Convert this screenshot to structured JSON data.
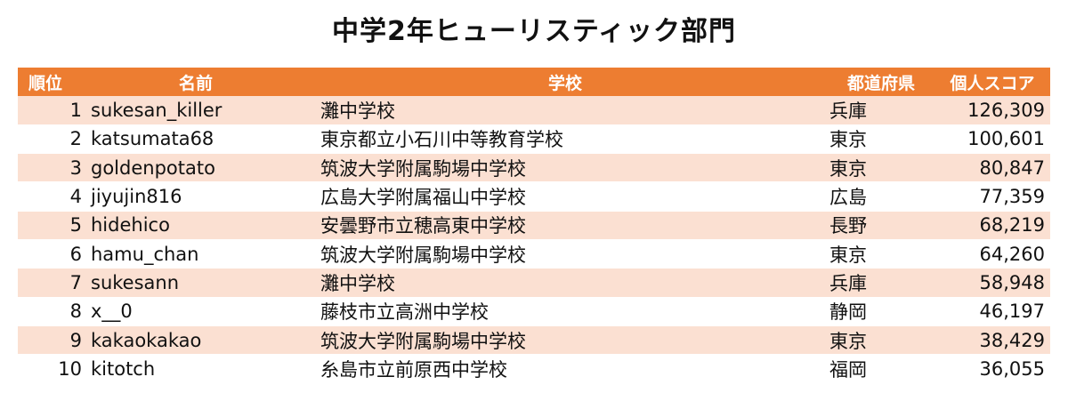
{
  "title": "中学2年ヒューリスティック部門",
  "headers": {
    "rank": "順位",
    "name": "名前",
    "school": "学校",
    "prefecture": "都道府県",
    "score": "個人スコア"
  },
  "rows": [
    {
      "rank": "1",
      "name": "sukesan_killer",
      "school": "灘中学校",
      "prefecture": "兵庫",
      "score": "126,309"
    },
    {
      "rank": "2",
      "name": "katsumata68",
      "school": "東京都立小石川中等教育学校",
      "prefecture": "東京",
      "score": "100,601"
    },
    {
      "rank": "3",
      "name": "goldenpotato",
      "school": "筑波大学附属駒場中学校",
      "prefecture": "東京",
      "score": "80,847"
    },
    {
      "rank": "4",
      "name": "jiyujin816",
      "school": "広島大学附属福山中学校",
      "prefecture": "広島",
      "score": "77,359"
    },
    {
      "rank": "5",
      "name": "hidehico",
      "school": "安曇野市立穂高東中学校",
      "prefecture": "長野",
      "score": "68,219"
    },
    {
      "rank": "6",
      "name": "hamu_chan",
      "school": "筑波大学附属駒場中学校",
      "prefecture": "東京",
      "score": "64,260"
    },
    {
      "rank": "7",
      "name": "sukesann",
      "school": "灘中学校",
      "prefecture": "兵庫",
      "score": "58,948"
    },
    {
      "rank": "8",
      "name": "x__0",
      "school": "藤枝市立高洲中学校",
      "prefecture": "静岡",
      "score": "46,197"
    },
    {
      "rank": "9",
      "name": "kakaokakao",
      "school": "筑波大学附属駒場中学校",
      "prefecture": "東京",
      "score": "38,429"
    },
    {
      "rank": "10",
      "name": "kitotch",
      "school": "糸島市立前原西中学校",
      "prefecture": "福岡",
      "score": "36,055"
    }
  ],
  "colors": {
    "header_bg": "#ed7d31",
    "header_text": "#ffffff",
    "band_row_bg": "#fbe0d2",
    "plain_row_bg": "#ffffff"
  }
}
